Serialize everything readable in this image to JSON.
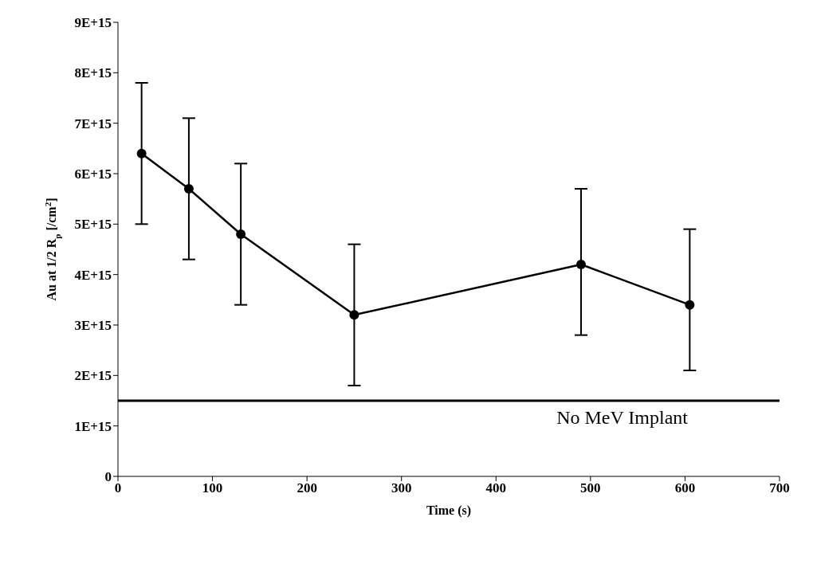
{
  "chart_data": {
    "type": "line",
    "xlabel": "Time (s)",
    "ylabel": "Au at 1/2 R$_{p}$ [/cm$^{2}$]",
    "x": [
      25,
      75,
      130,
      250,
      490,
      605
    ],
    "series": [
      {
        "color": "#000000",
        "values": [
          6400000000000000.0,
          5700000000000000.0,
          4800000000000000.0,
          3200000000000000.0,
          4200000000000000.0,
          3400000000000000.0
        ],
        "errors": [
          [
            5000000000000000.0,
            7800000000000000.0
          ],
          [
            4300000000000000.0,
            7100000000000000.0
          ],
          [
            3400000000000000.0,
            6200000000000000.0
          ],
          [
            1800000000000000.0,
            4600000000000000.0
          ],
          [
            2800000000000000.0,
            5700000000000000.0
          ],
          [
            2100000000000000.0,
            4900000000000000.0
          ]
        ]
      }
    ],
    "xlim": [
      0,
      700
    ],
    "xticks": [
      0,
      100,
      200,
      300,
      400,
      500,
      600,
      700
    ],
    "ylim": [
      0,
      9000000000000000.0
    ],
    "yticks": [
      0,
      {
        "value": 1000000000000000.0,
        "label": "1E+15"
      },
      {
        "value": 2000000000000000.0,
        "label": "2E+15"
      },
      {
        "value": 3000000000000000.0,
        "label": "3E+15"
      },
      {
        "value": 4000000000000000.0,
        "label": "4E+15"
      },
      {
        "value": 5000000000000000.0,
        "label": "5E+15"
      },
      {
        "value": 6000000000000000.0,
        "label": "6E+15"
      },
      {
        "value": 7000000000000000.0,
        "label": "7E+15"
      },
      {
        "value": 8000000000000000.0,
        "label": "8E+15"
      },
      {
        "value": 9000000000000000.0,
        "label": "9E+15"
      }
    ],
    "ref_lines": [
      {
        "axis": "y",
        "value": 1500000000000000.0,
        "label": "No MeV Implant",
        "color": "#000000"
      }
    ],
    "marker": "circle",
    "line_style": "solid"
  }
}
